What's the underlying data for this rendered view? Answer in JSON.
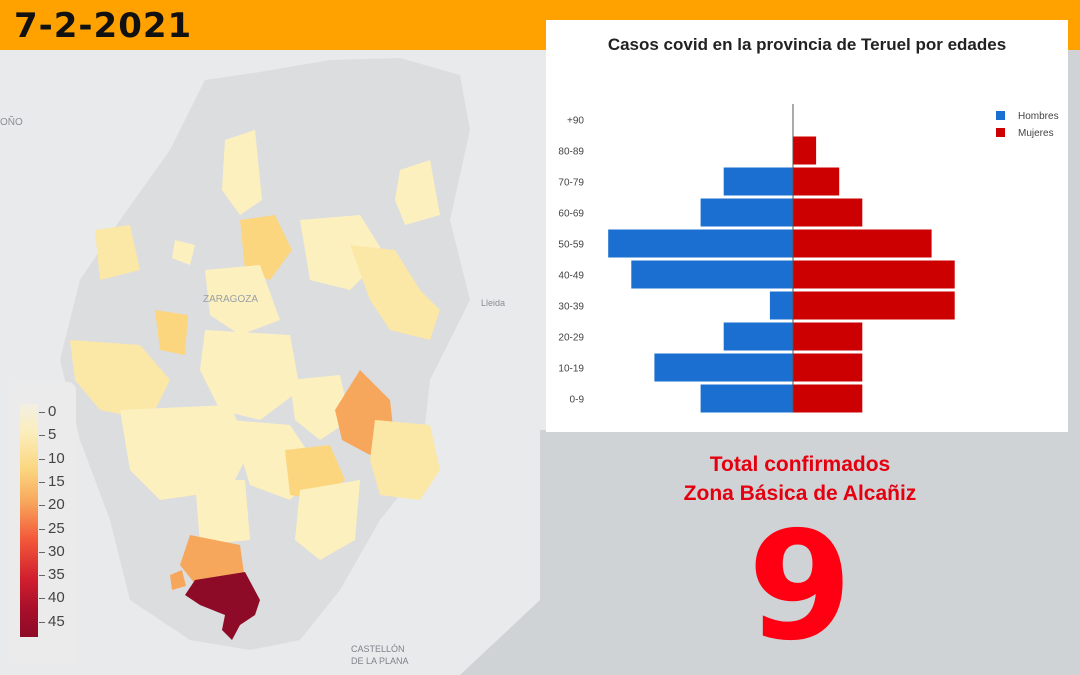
{
  "header": {
    "date": "7-2-2021"
  },
  "map": {
    "labels": {
      "partial_label": "OÑO",
      "zaragoza": "ZARAGOZA",
      "lleida": "Lleida",
      "castellon_line1": "CASTELLÓN",
      "castellon_line2": "DE LA PLANA"
    },
    "legend": {
      "ticks": [
        "0",
        "5",
        "10",
        "15",
        "20",
        "25",
        "30",
        "35",
        "40",
        "45"
      ],
      "range": [
        0,
        45
      ],
      "colors": [
        "#f2efe3",
        "#fbeebd",
        "#fbd67f",
        "#f7a75c",
        "#f3593a",
        "#d11f2e",
        "#8e0b27"
      ]
    }
  },
  "chart_data": {
    "type": "bar",
    "orientation": "horizontal",
    "title": "Casos covid en la provincia de Teruel por edades",
    "categories": [
      "+90",
      "80-89",
      "70-79",
      "60-69",
      "50-59",
      "40-49",
      "30-39",
      "20-29",
      "10-19",
      "0-9"
    ],
    "series": [
      {
        "name": "Hombres",
        "color": "#1a6fd0",
        "values": [
          0,
          0,
          3,
          4,
          8,
          7,
          1,
          3,
          6,
          4
        ]
      },
      {
        "name": "Mujeres",
        "color": "#cc0000",
        "values": [
          0,
          1,
          2,
          3,
          6,
          7,
          7,
          3,
          3,
          3
        ]
      }
    ],
    "legend_position": "top-right",
    "grid": false
  },
  "summary": {
    "line1": "Total confirmados",
    "line2": "Zona Básica de Alcañiz",
    "value": "9"
  }
}
